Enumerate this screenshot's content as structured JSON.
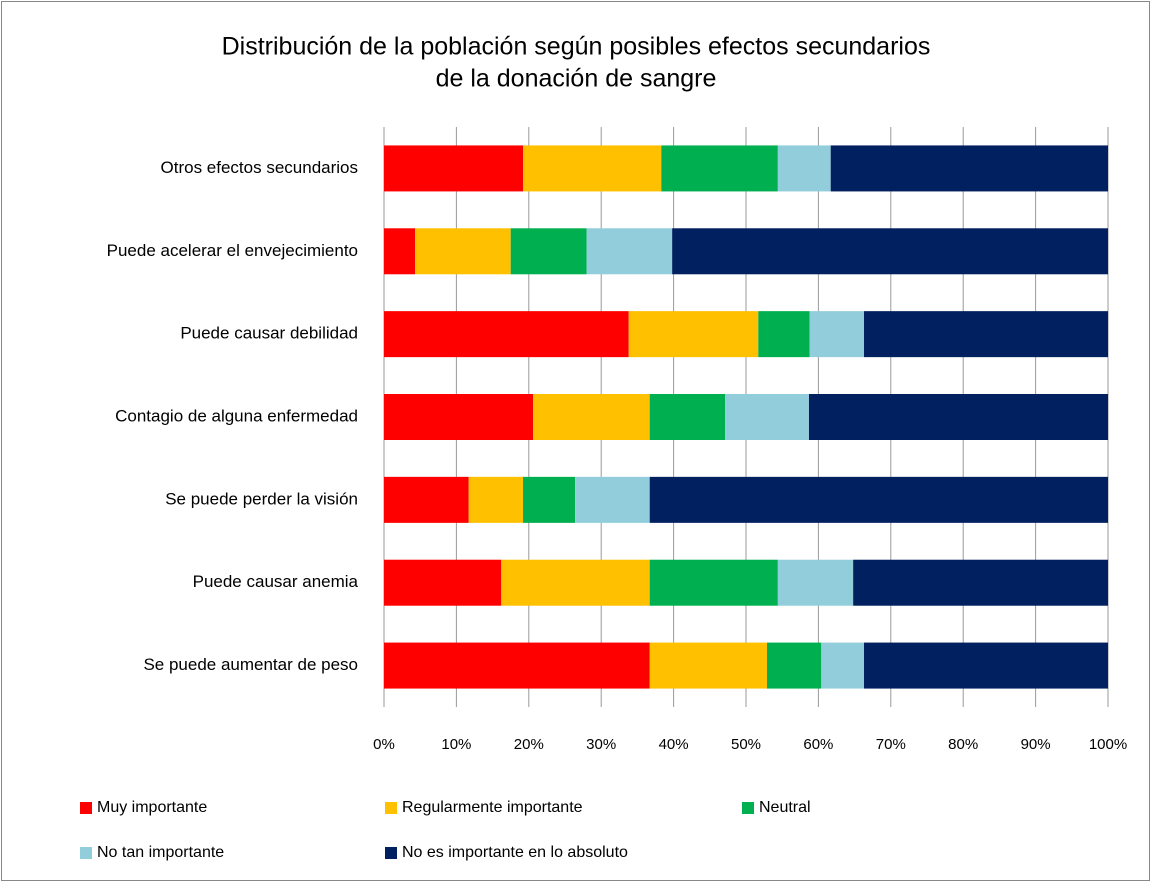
{
  "chart_data": {
    "type": "stacked-bar-horizontal",
    "title": [
      "Distribución de la población según posibles efectos secundarios",
      "de la donación de sangre"
    ],
    "categories": [
      "Otros efectos secundarios",
      "Puede acelerar el envejecimiento",
      "Puede causar debilidad",
      "Contagio de alguna enfermedad",
      "Se puede perder la visión",
      "Puede causar anemia",
      "Se puede aumentar de peso"
    ],
    "series": [
      {
        "name": "Muy importante",
        "color": "#ff0000",
        "values": [
          19.2,
          4.3,
          33.8,
          20.6,
          11.7,
          16.2,
          36.7
        ]
      },
      {
        "name": "Regularmente importante",
        "color": "#ffc000",
        "values": [
          19.1,
          13.2,
          17.9,
          16.1,
          7.5,
          20.5,
          16.2
        ]
      },
      {
        "name": "Neutral",
        "color": "#00b050",
        "values": [
          16.1,
          10.5,
          7.1,
          10.4,
          7.2,
          17.7,
          7.5
        ]
      },
      {
        "name": "No tan importante",
        "color": "#92cddc",
        "values": [
          7.3,
          11.8,
          7.5,
          11.6,
          10.3,
          10.4,
          5.9
        ]
      },
      {
        "name": "No es importante en lo absoluto",
        "color": "#002060",
        "values": [
          38.3,
          60.2,
          33.7,
          41.3,
          63.3,
          35.2,
          33.7
        ]
      }
    ],
    "xlim": [
      0,
      100
    ],
    "xticks": [
      {
        "value": 0,
        "label": "0%"
      },
      {
        "value": 10,
        "label": "10%"
      },
      {
        "value": 20,
        "label": "20%"
      },
      {
        "value": 30,
        "label": "30%"
      },
      {
        "value": 40,
        "label": "40%"
      },
      {
        "value": 50,
        "label": "50%"
      },
      {
        "value": 60,
        "label": "60%"
      },
      {
        "value": 70,
        "label": "70%"
      },
      {
        "value": 80,
        "label": "80%"
      },
      {
        "value": 90,
        "label": "90%"
      },
      {
        "value": 100,
        "label": "100%"
      }
    ],
    "grid": true,
    "legend": "bottom"
  }
}
